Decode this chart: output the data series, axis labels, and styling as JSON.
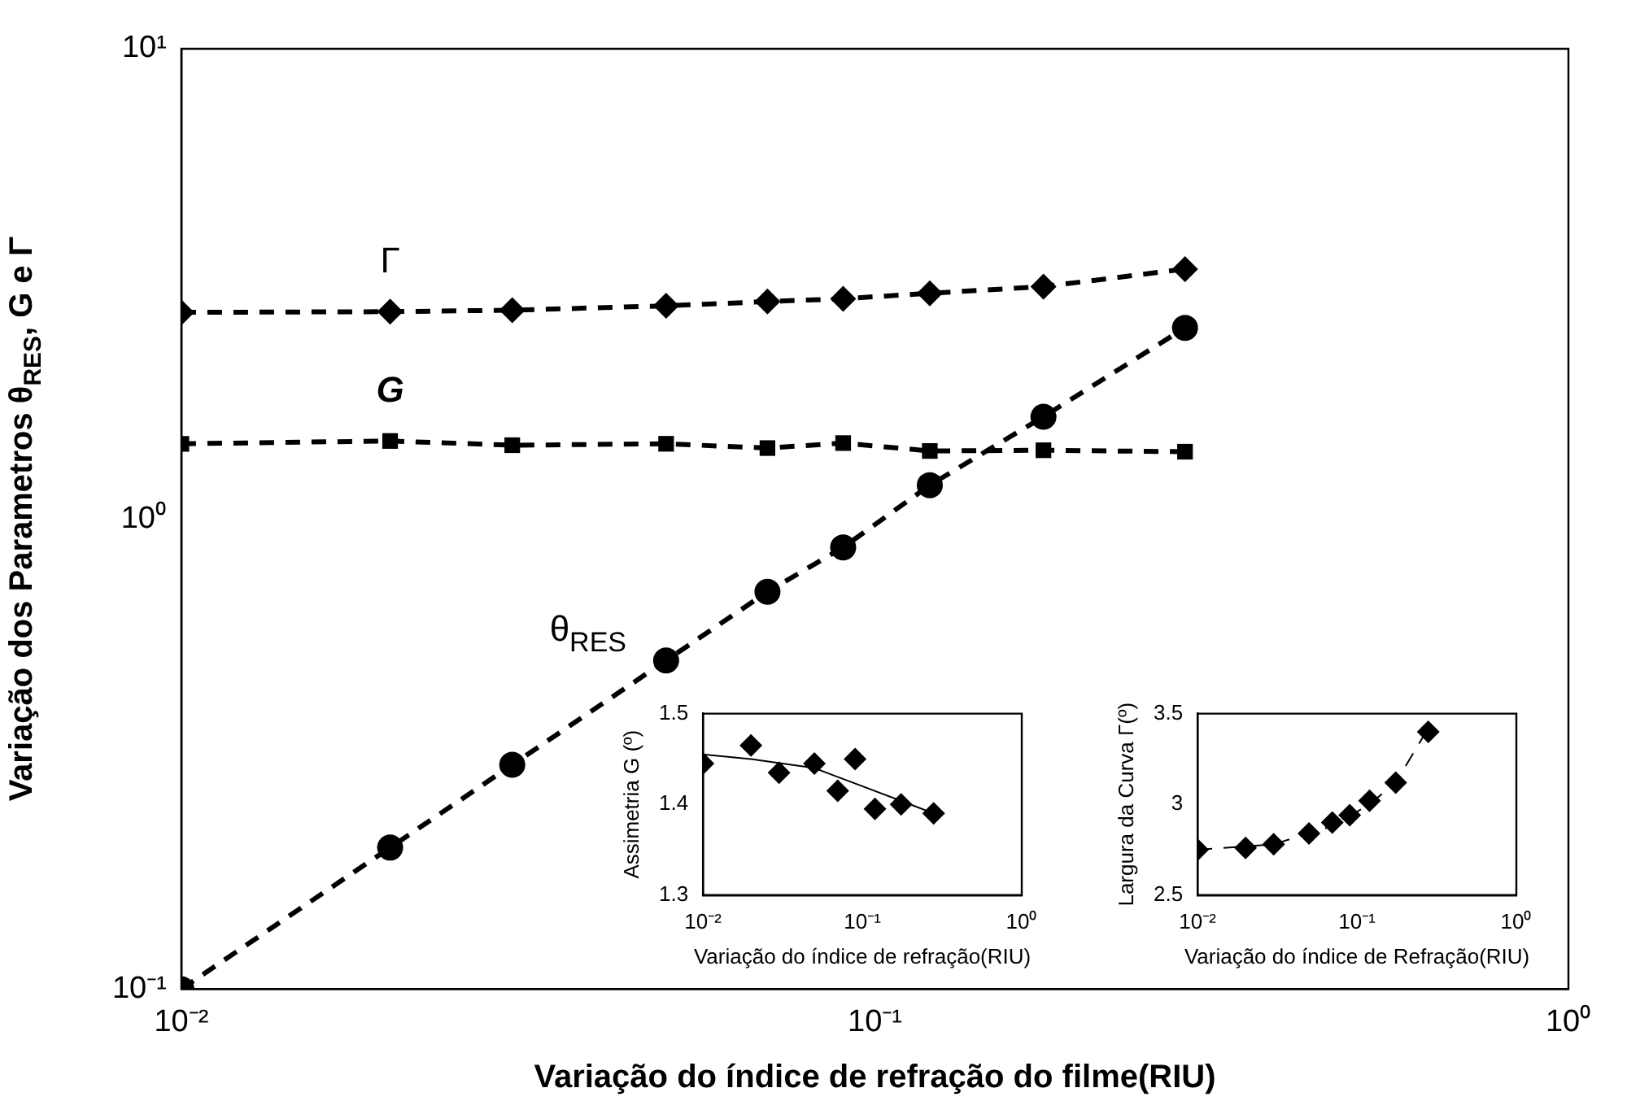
{
  "chart_data": [
    {
      "type": "line",
      "xlabel": "Variação do índice de refração do filme(RIU)",
      "ylabel": "Variação dos Parametros θ$_{RES}$, G e Γ",
      "log": "xy",
      "legend": false,
      "line_style": "dashed",
      "xlim": [
        0.01,
        1
      ],
      "xticks": [
        {
          "value": 0.01,
          "label": "10⁻²"
        },
        {
          "value": 0.1,
          "label": "10⁻¹"
        },
        {
          "value": 1,
          "label": "10⁰"
        }
      ],
      "ylim": [
        0.1,
        10
      ],
      "yticks": [
        {
          "value": 0.1,
          "label": "10⁻¹"
        },
        {
          "value": 1,
          "label": "10⁰"
        },
        {
          "value": 10,
          "label": "10¹"
        }
      ],
      "x": [
        0.01,
        0.02,
        0.03,
        0.05,
        0.07,
        0.09,
        0.12,
        0.175,
        0.28
      ],
      "series": [
        {
          "name": "Γ",
          "color": "#000000",
          "marker": "diamond",
          "values": [
            2.75,
            2.76,
            2.78,
            2.84,
            2.9,
            2.94,
            3.02,
            3.12,
            3.4
          ]
        },
        {
          "name": "G",
          "color": "#000000",
          "marker": "square",
          "values": [
            1.445,
            1.465,
            1.435,
            1.445,
            1.415,
            1.45,
            1.395,
            1.4,
            1.39
          ]
        },
        {
          "name": "θ$_{RES}$",
          "color": "#000000",
          "marker": "circle",
          "values": [
            0.1,
            0.2,
            0.3,
            0.5,
            0.7,
            0.87,
            1.18,
            1.65,
            2.55
          ]
        }
      ]
    },
    {
      "type": "scatter",
      "xlabel": "Variação do índice de refração(RIU)",
      "ylabel": "Assimetria G (º)",
      "log": "x",
      "legend": false,
      "marker": "diamond",
      "xlim": [
        0.01,
        1
      ],
      "xticks": [
        {
          "value": 0.01,
          "label": "10⁻²"
        },
        {
          "value": 0.1,
          "label": "10⁻¹"
        },
        {
          "value": 1,
          "label": "10⁰"
        }
      ],
      "ylim": [
        1.3,
        1.5
      ],
      "yticks": [
        1.3,
        1.4,
        1.5
      ],
      "x": [
        0.01,
        0.02,
        0.03,
        0.05,
        0.07,
        0.09,
        0.12,
        0.175,
        0.28
      ],
      "series": [
        {
          "color": "#000000",
          "values": [
            1.445,
            1.465,
            1.435,
            1.445,
            1.415,
            1.45,
            1.395,
            1.4,
            1.39
          ]
        },
        {
          "type": "line",
          "color": "#000000",
          "marker": "none",
          "line_style": "solid",
          "x": [
            0.01,
            0.02,
            0.05,
            0.1,
            0.2,
            0.28
          ],
          "values": [
            1.455,
            1.45,
            1.44,
            1.42,
            1.4,
            1.39
          ]
        }
      ]
    },
    {
      "type": "scatter",
      "xlabel": "Variação do índice de Refração(RIU)",
      "ylabel": "Largura da Curva Γ(º)",
      "log": "x",
      "legend": false,
      "marker": "diamond",
      "xlim": [
        0.01,
        1
      ],
      "xticks": [
        {
          "value": 0.01,
          "label": "10⁻²"
        },
        {
          "value": 0.1,
          "label": "10⁻¹"
        },
        {
          "value": 1,
          "label": "10⁰"
        }
      ],
      "ylim": [
        2.5,
        3.5
      ],
      "yticks": [
        2.5,
        3,
        3.5
      ],
      "x": [
        0.01,
        0.02,
        0.03,
        0.05,
        0.07,
        0.09,
        0.12,
        0.175,
        0.28
      ],
      "series": [
        {
          "color": "#000000",
          "values": [
            2.75,
            2.76,
            2.78,
            2.84,
            2.9,
            2.94,
            3.02,
            3.12,
            3.4
          ]
        },
        {
          "type": "line",
          "color": "#000000",
          "marker": "none",
          "line_style": "dashed",
          "x": [
            0.01,
            0.03,
            0.07,
            0.12,
            0.175,
            0.28
          ],
          "values": [
            2.75,
            2.78,
            2.88,
            3.0,
            3.12,
            3.42
          ]
        }
      ]
    }
  ]
}
